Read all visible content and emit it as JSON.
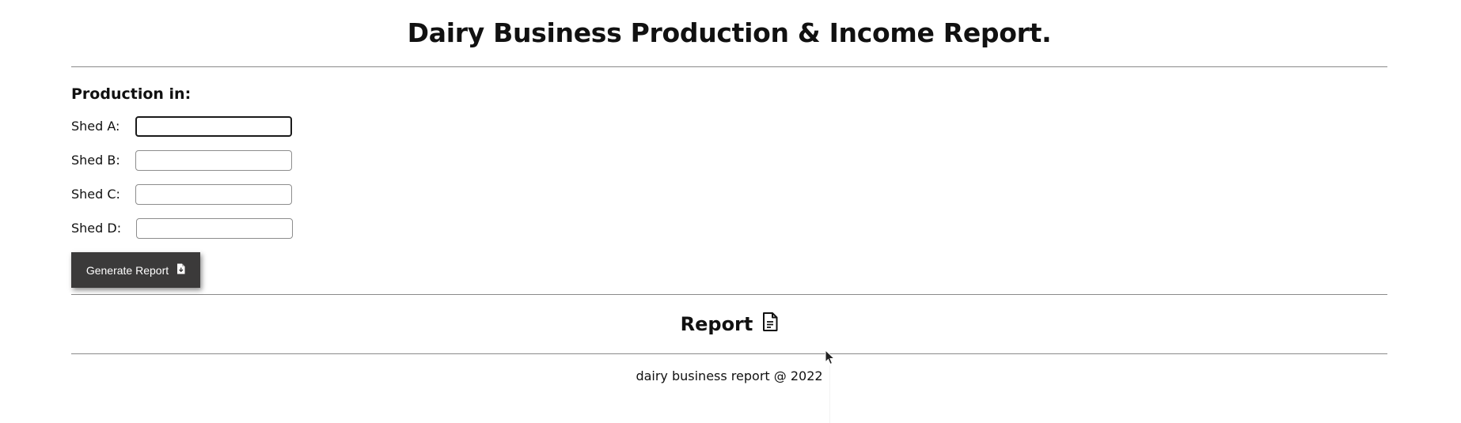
{
  "header": {
    "title": "Dairy Business Production & Income Report."
  },
  "production": {
    "heading": "Production in:",
    "fields": [
      {
        "label": "Shed A:",
        "value": "",
        "placeholder": ""
      },
      {
        "label": "Shed B:",
        "value": "",
        "placeholder": ""
      },
      {
        "label": "Shed C:",
        "value": "",
        "placeholder": ""
      },
      {
        "label": "Shed D:",
        "value": "",
        "placeholder": ""
      }
    ],
    "generate_label": "Generate Report",
    "generate_icon": "file-download-icon"
  },
  "report": {
    "heading": "Report",
    "icon": "file-text-icon"
  },
  "footer": {
    "text": "dairy business report @ 2022"
  },
  "colors": {
    "button_bg": "#3b3a3a",
    "button_text": "#ffffff",
    "rule": "#8a8a8a"
  }
}
